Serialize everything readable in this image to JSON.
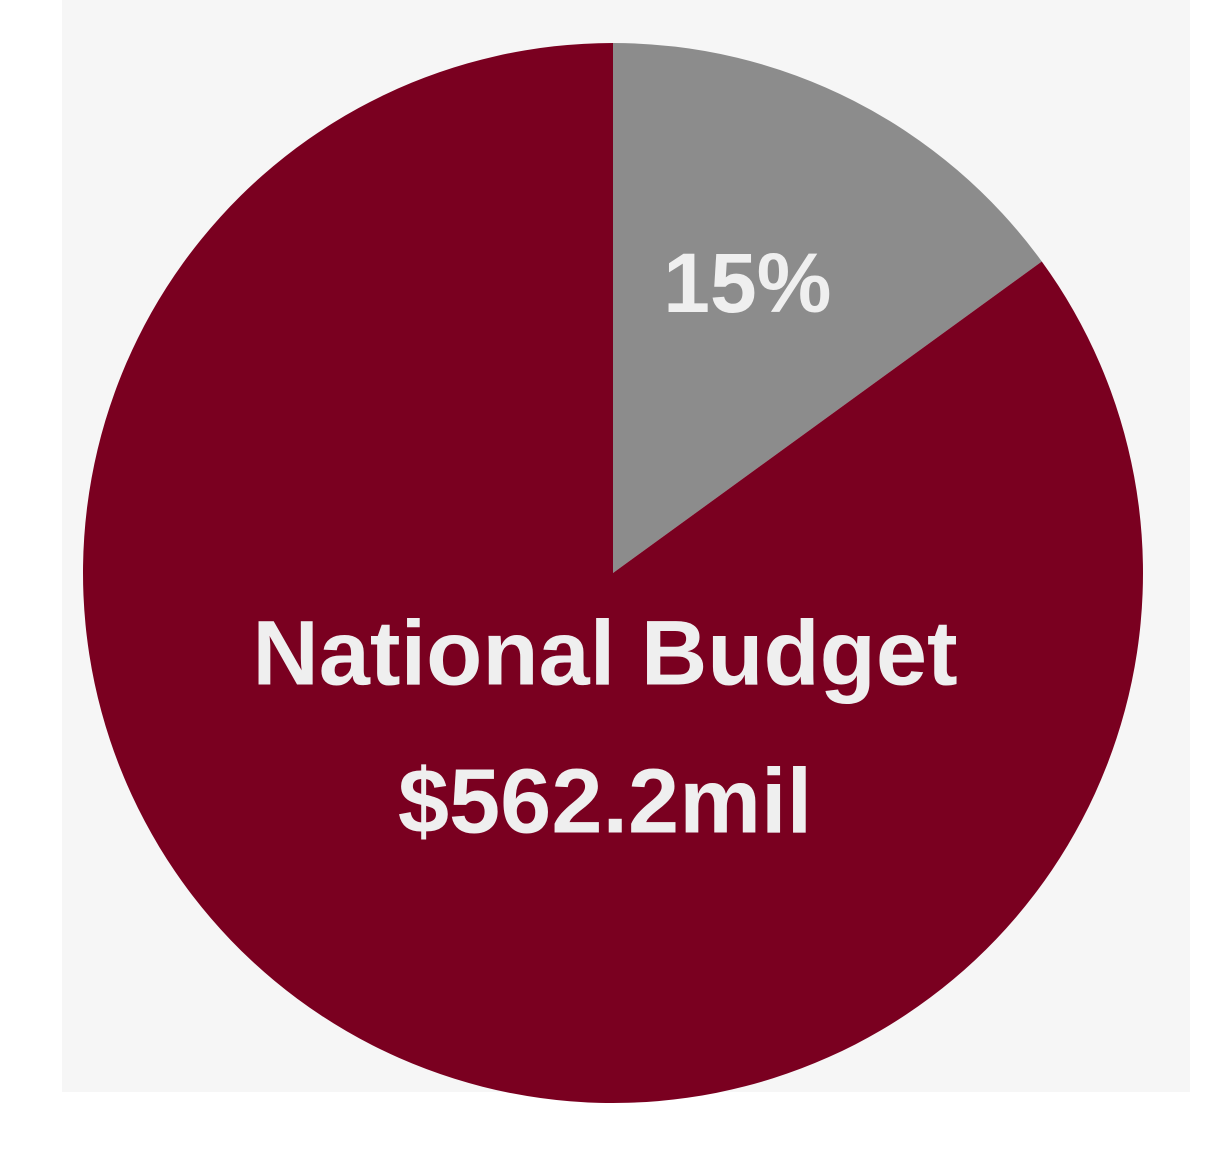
{
  "chart_data": {
    "type": "pie",
    "categories": [
      null,
      "National Budget"
    ],
    "values": [
      15,
      85
    ],
    "value_labels": [
      "15%",
      null
    ],
    "colors": [
      "#8c8c8c",
      "#7a0020"
    ],
    "annotations": [
      "$562.2mil"
    ]
  }
}
